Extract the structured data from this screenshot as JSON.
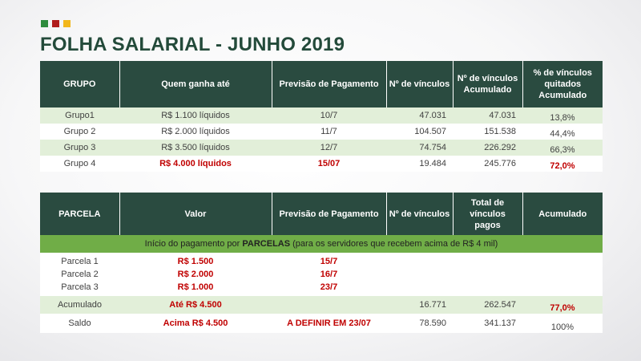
{
  "brand_colors": [
    "#2e8b3d",
    "#b01c1c",
    "#f2b71c"
  ],
  "title": "FOLHA SALARIAL - JUNHO 2019",
  "table1": {
    "headers": [
      "GRUPO",
      "Quem ganha até",
      "Previsão de Pagamento",
      "Nº de vínculos",
      "Nº de vínculos Acumulado",
      "% de vínculos quitados Acumulado"
    ],
    "rows": [
      {
        "grupo": "Grupo1",
        "quem": "R$ 1.100 líquidos",
        "previsao": "10/7",
        "vinculos": "47.031",
        "acumulado": "47.031",
        "percent": "13,8%"
      },
      {
        "grupo": "Grupo 2",
        "quem": "R$ 2.000 líquidos",
        "previsao": "11/7",
        "vinculos": "104.507",
        "acumulado": "151.538",
        "percent": "44,4%"
      },
      {
        "grupo": "Grupo 3",
        "quem": "R$ 3.500 líquidos",
        "previsao": "12/7",
        "vinculos": "74.754",
        "acumulado": "226.292",
        "percent": "66,3%"
      },
      {
        "grupo": "Grupo 4",
        "quem": "R$ 4.000 líquidos",
        "previsao": "15/07",
        "vinculos": "19.484",
        "acumulado": "245.776",
        "percent": "72,0%"
      }
    ]
  },
  "table2": {
    "headers": [
      "PARCELA",
      "Valor",
      "Previsão de Pagamento",
      "Nº de vínculos",
      "Total de vínculos pagos",
      "Acumulado"
    ],
    "banner_pre": "Início do pagamento por ",
    "banner_bold": "PARCELAS",
    "banner_post": " (para os servidores que recebem acima de R$ 4 mil)",
    "parcelas": [
      {
        "nome": "Parcela 1",
        "valor": "R$ 1.500",
        "previsao": "15/7"
      },
      {
        "nome": "Parcela 2",
        "valor": "R$ 2.000",
        "previsao": "16/7"
      },
      {
        "nome": "Parcela 3",
        "valor": "R$ 1.000",
        "previsao": "23/7"
      }
    ],
    "acumulado": {
      "label": "Acumulado",
      "valor": "Até R$ 4.500",
      "previsao": "",
      "vinculos": "16.771",
      "total": "262.547",
      "acum": "77,0%"
    },
    "saldo": {
      "label": "Saldo",
      "valor": "Acima R$ 4.500",
      "previsao": "A DEFINIR EM 23/07",
      "vinculos": "78.590",
      "total": "341.137",
      "acum": "100%"
    }
  }
}
